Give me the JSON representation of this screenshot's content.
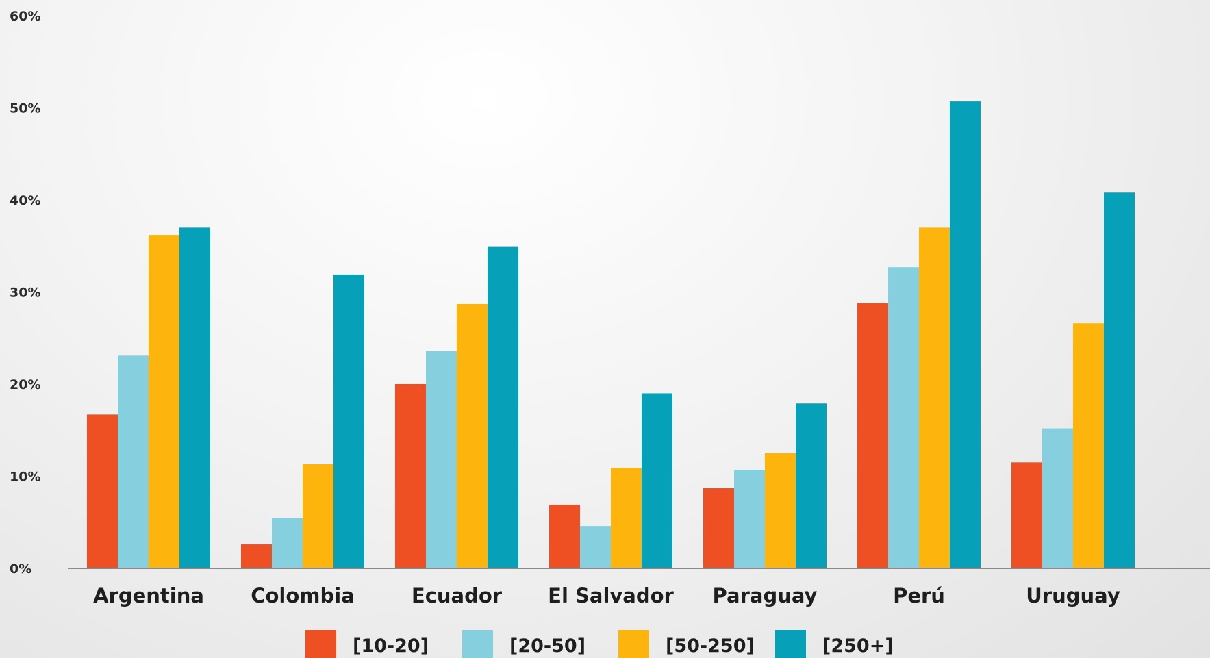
{
  "chart_data": {
    "type": "bar",
    "categories": [
      "Argentina",
      "Colombia",
      "Ecuador",
      "El Salvador",
      "Paraguay",
      "Perú",
      "Uruguay"
    ],
    "series": [
      {
        "name": "[10-20]",
        "color": "#ee5024",
        "values": [
          16.7,
          2.6,
          20.0,
          6.9,
          8.7,
          28.8,
          11.5
        ]
      },
      {
        "name": "[20-50]",
        "color": "#86cfdf",
        "values": [
          23.1,
          5.5,
          23.6,
          4.6,
          10.7,
          32.7,
          15.2
        ]
      },
      {
        "name": "[50-250]",
        "color": "#fdb40d",
        "values": [
          36.2,
          11.3,
          28.7,
          10.9,
          12.5,
          37.0,
          26.6
        ]
      },
      {
        "name": "[250+]",
        "color": "#06a1b9",
        "values": [
          37.0,
          31.9,
          34.9,
          19.0,
          17.9,
          50.7,
          40.8
        ]
      }
    ],
    "yticks": [
      "0%",
      "10%",
      "20%",
      "30%",
      "40%",
      "50%",
      "60%"
    ],
    "ylim": [
      0,
      60
    ],
    "legend": "bottom-center",
    "grid": false
  }
}
